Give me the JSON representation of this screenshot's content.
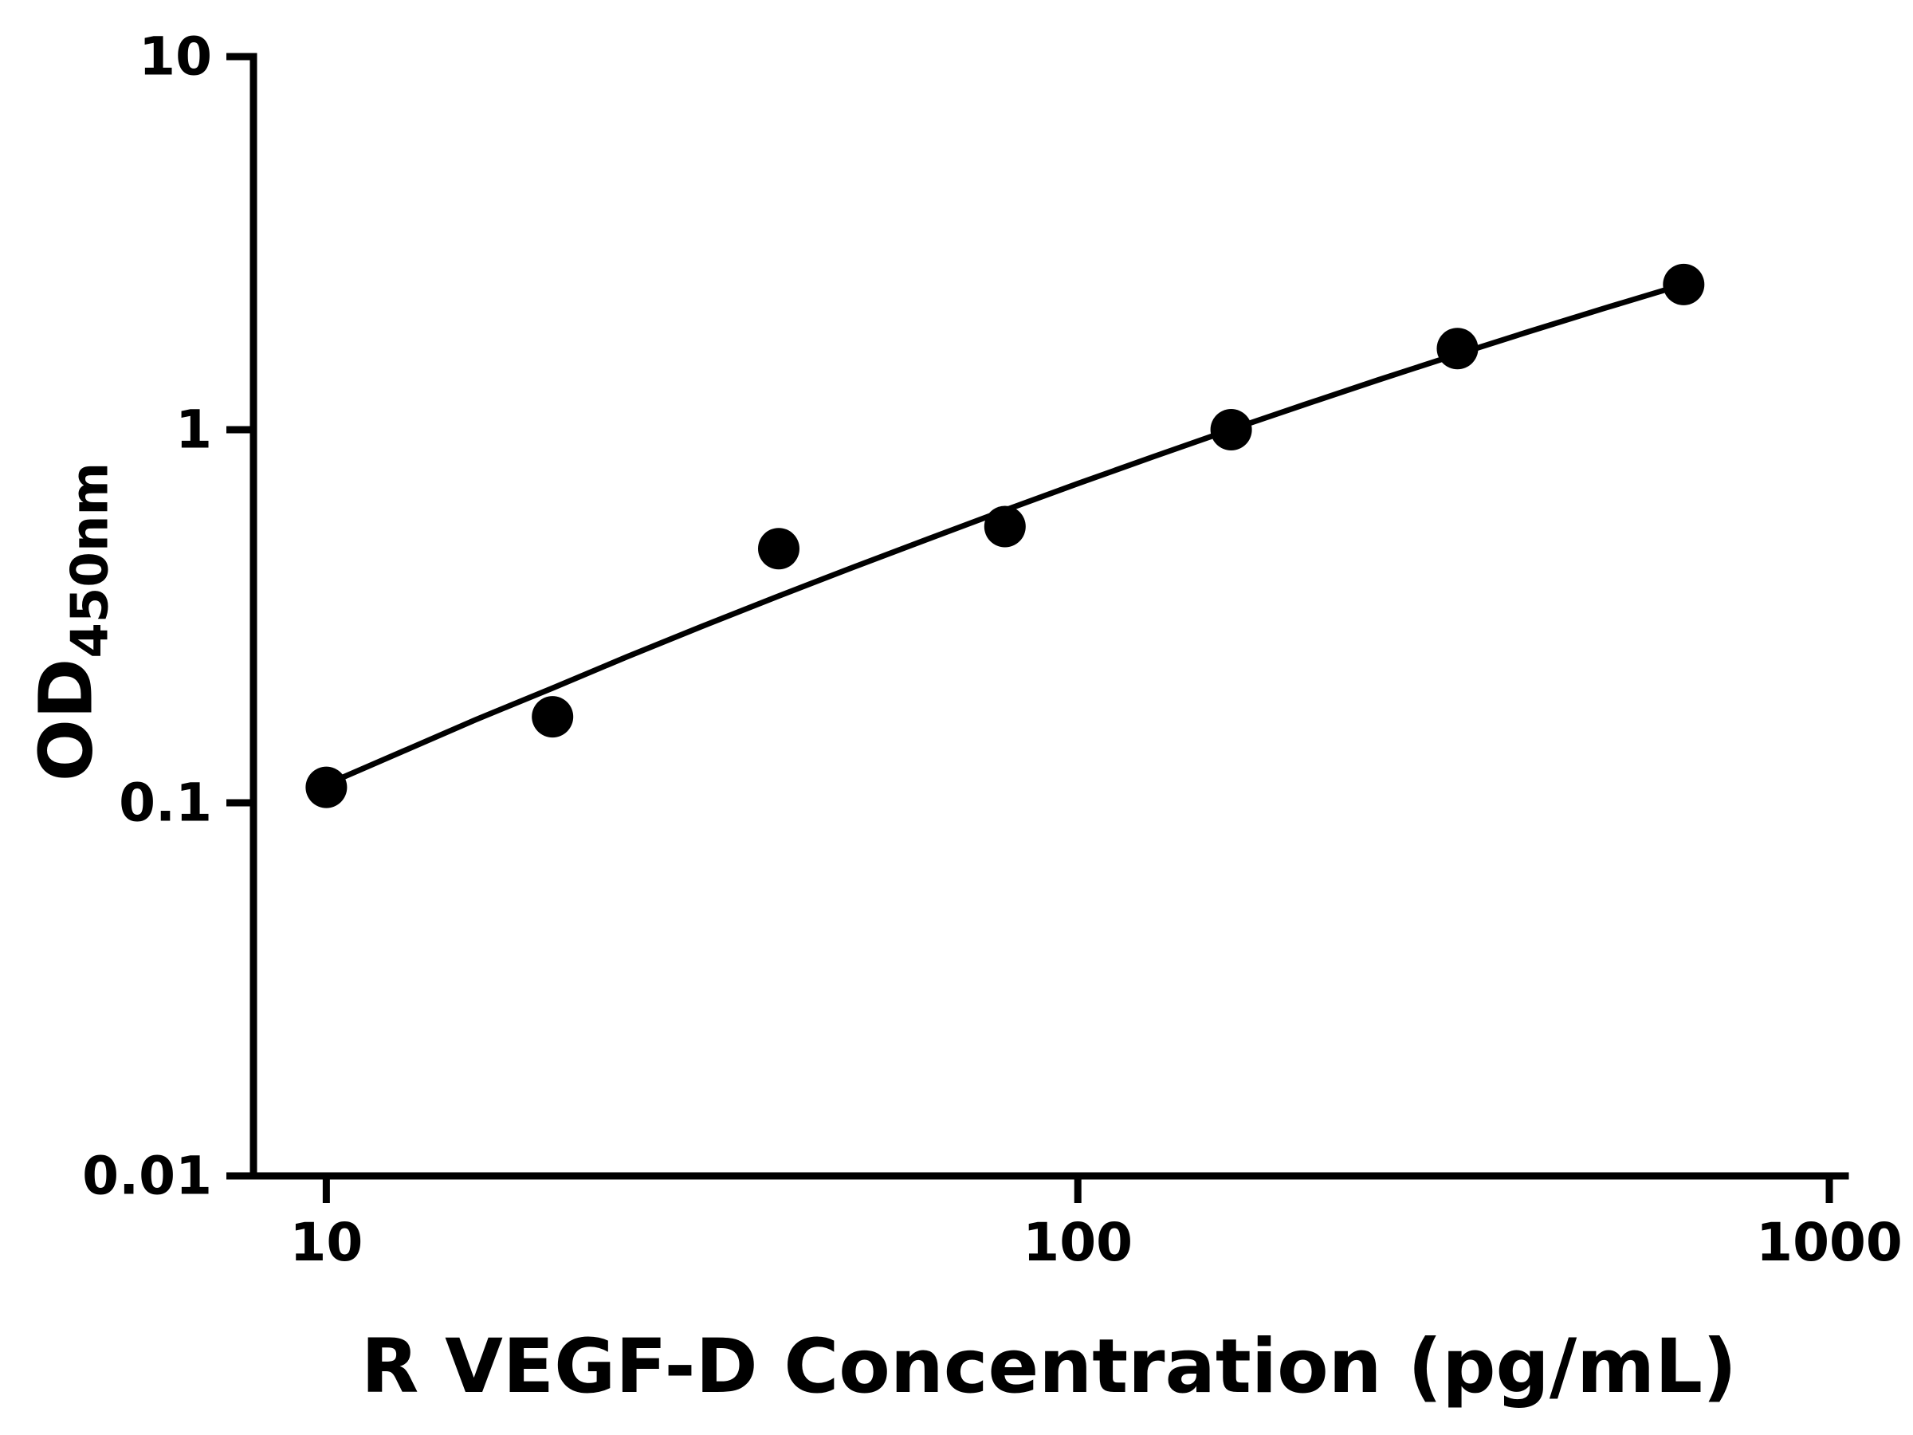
{
  "figure": {
    "background": "#ffffff",
    "foreground": "#000000"
  },
  "chart_data": {
    "type": "scatter",
    "title": "",
    "xlabel": "R VEGF-D Concentration (pg/mL)",
    "ylabel_main": "OD",
    "ylabel_sub": "450nm",
    "x_scale": "log",
    "y_scale": "log",
    "xlim": [
      8,
      1050
    ],
    "ylim": [
      0.01,
      10
    ],
    "grid": false,
    "marker_color": "#000000",
    "line_color": "#000000",
    "axis_color": "#000000",
    "x_ticks": [
      {
        "value": 10,
        "label": "10"
      },
      {
        "value": 100,
        "label": "100"
      },
      {
        "value": 1000,
        "label": "1000"
      }
    ],
    "y_ticks": [
      {
        "value": 10,
        "label": "10"
      },
      {
        "value": 1,
        "label": "1"
      },
      {
        "value": 0.1,
        "label": "0.1"
      },
      {
        "value": 0.01,
        "label": "0.01"
      }
    ],
    "points": [
      {
        "x": 10,
        "y": 0.11
      },
      {
        "x": 20,
        "y": 0.17
      },
      {
        "x": 40,
        "y": 0.48
      },
      {
        "x": 80,
        "y": 0.55
      },
      {
        "x": 160,
        "y": 1.0
      },
      {
        "x": 320,
        "y": 1.65
      },
      {
        "x": 640,
        "y": 2.45
      }
    ],
    "fit_curve": [
      [
        10,
        0.112
      ],
      [
        12.6,
        0.137
      ],
      [
        15.8,
        0.167
      ],
      [
        20.0,
        0.203
      ],
      [
        25.1,
        0.246
      ],
      [
        31.6,
        0.297
      ],
      [
        39.8,
        0.357
      ],
      [
        50.1,
        0.427
      ],
      [
        63.1,
        0.509
      ],
      [
        79.4,
        0.605
      ],
      [
        100.0,
        0.717
      ],
      [
        125.9,
        0.846
      ],
      [
        158.5,
        0.995
      ],
      [
        199.5,
        1.165
      ],
      [
        251.2,
        1.36
      ],
      [
        316.2,
        1.581
      ],
      [
        398.1,
        1.832
      ],
      [
        501.2,
        2.115
      ],
      [
        640.0,
        2.452
      ]
    ]
  }
}
